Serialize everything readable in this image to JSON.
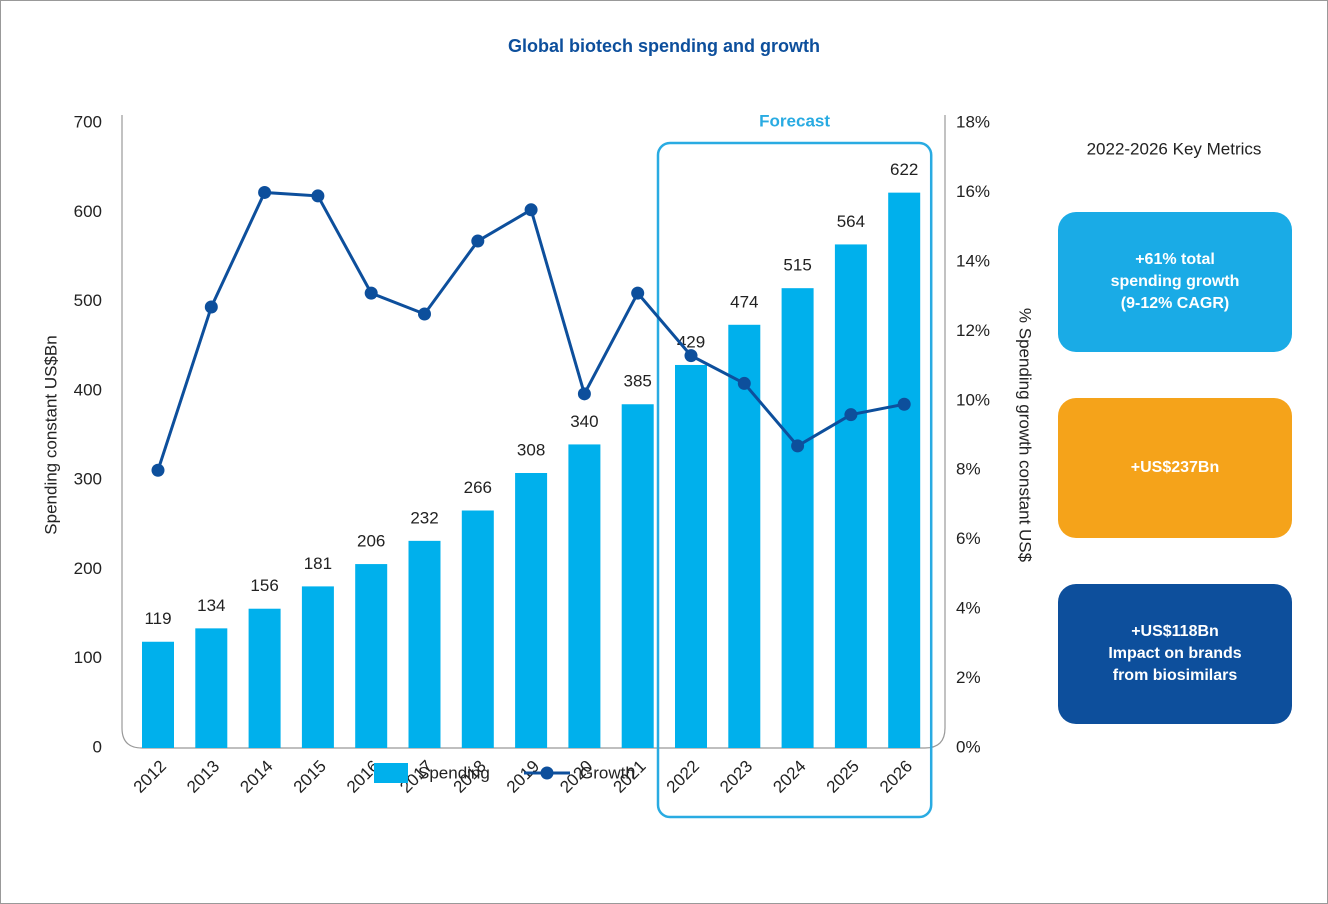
{
  "chart_data": {
    "type": "bar",
    "title": "Global biotech spending and growth",
    "categories": [
      "2012",
      "2013",
      "2014",
      "2015",
      "2016",
      "2017",
      "2018",
      "2019",
      "2020",
      "2021",
      "2022",
      "2023",
      "2024",
      "2025",
      "2026"
    ],
    "series": [
      {
        "name": "Spending",
        "type": "bar",
        "color": "#00b0ec",
        "values": [
          119,
          134,
          156,
          181,
          206,
          232,
          266,
          308,
          340,
          385,
          429,
          474,
          515,
          564,
          622
        ]
      },
      {
        "name": "Growth",
        "type": "line",
        "axis": "y2",
        "color": "#0d4f9c",
        "values": [
          8.0,
          12.7,
          16.0,
          15.9,
          13.1,
          12.5,
          14.6,
          15.5,
          10.2,
          13.1,
          11.3,
          10.5,
          8.7,
          9.6,
          9.9
        ]
      }
    ],
    "ylabel": "Spending constant US$Bn",
    "y2label": "% Spending growth constant US$",
    "ylim": [
      0,
      700
    ],
    "yticks": [
      0,
      100,
      200,
      300,
      400,
      500,
      600,
      700
    ],
    "y2lim": [
      0,
      18
    ],
    "y2ticks": [
      {
        "value": 0,
        "label": "0%"
      },
      {
        "value": 2,
        "label": "2%"
      },
      {
        "value": 4,
        "label": "4%"
      },
      {
        "value": 6,
        "label": "6%"
      },
      {
        "value": 8,
        "label": "8%"
      },
      {
        "value": 10,
        "label": "10%"
      },
      {
        "value": 12,
        "label": "12%"
      },
      {
        "value": 14,
        "label": "14%"
      },
      {
        "value": 16,
        "label": "16%"
      },
      {
        "value": 18,
        "label": "18%"
      }
    ],
    "annotations": [
      {
        "text": "Forecast",
        "from": "2022",
        "to": "2026"
      }
    ],
    "legend": "bottom"
  },
  "key_metrics": {
    "title": "2022-2026 Key Metrics",
    "boxes": [
      {
        "color": "#1aabe6",
        "lines": [
          "+61% total",
          "spending growth",
          "(9-12% CAGR)"
        ]
      },
      {
        "color": "#f5a31a",
        "lines": [
          "+US$237Bn"
        ]
      },
      {
        "color": "#0d4f9c",
        "lines": [
          "+US$118Bn",
          "Impact on brands",
          "from biosimilars"
        ]
      }
    ]
  }
}
